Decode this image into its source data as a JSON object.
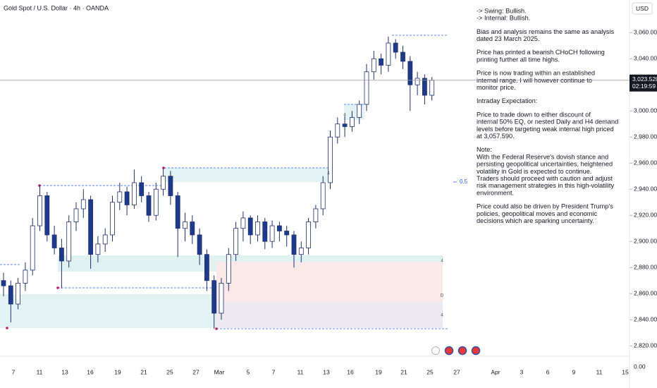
{
  "header": {
    "title": "Gold Spot / U.S. Dollar · 4h · OANDA",
    "currency": "USD"
  },
  "chart_data": {
    "type": "candlestick",
    "series": [
      {
        "up_color": "#ffffff",
        "down_color": "#1e3a8a",
        "edge_color": "#1e2f6e",
        "open": [
          2870,
          2866,
          2852,
          2868,
          2878,
          2912,
          2935,
          2905,
          2895,
          2885,
          2915,
          2925,
          2932,
          2890,
          2898,
          2905,
          2930,
          2938,
          2928,
          2945,
          2935,
          2920,
          2940,
          2950,
          2935,
          2910,
          2915,
          2905,
          2890,
          2870,
          2845,
          2868,
          2890,
          2910,
          2918,
          2905,
          2915,
          2900,
          2912,
          2908,
          2905,
          2890,
          2895,
          2915,
          2925,
          2945,
          2980,
          2990,
          2988,
          2995,
          3005,
          3030,
          3040,
          3035,
          3052,
          3045,
          3038,
          3020,
          3025,
          3012
        ],
        "high": [
          2876,
          2870,
          2872,
          2884,
          2918,
          2943,
          2938,
          2912,
          2902,
          2920,
          2930,
          2940,
          2935,
          2904,
          2910,
          2935,
          2945,
          2942,
          2955,
          2950,
          2938,
          2945,
          2956,
          2954,
          2938,
          2922,
          2920,
          2910,
          2894,
          2874,
          2872,
          2895,
          2915,
          2923,
          2920,
          2920,
          2918,
          2916,
          2915,
          2912,
          2908,
          2900,
          2918,
          2928,
          2950,
          2985,
          2995,
          2996,
          3000,
          3008,
          3036,
          3046,
          3044,
          3057,
          3055,
          3050,
          3042,
          3030,
          3028,
          3026
        ],
        "low": [
          2858,
          2838,
          2848,
          2862,
          2874,
          2908,
          2900,
          2890,
          2864,
          2880,
          2908,
          2918,
          2879,
          2884,
          2892,
          2900,
          2924,
          2920,
          2925,
          2930,
          2915,
          2916,
          2935,
          2928,
          2888,
          2900,
          2898,
          2882,
          2862,
          2833,
          2840,
          2862,
          2885,
          2900,
          2898,
          2900,
          2894,
          2895,
          2900,
          2896,
          2880,
          2884,
          2890,
          2910,
          2920,
          2940,
          2975,
          2980,
          2984,
          2990,
          3000,
          3024,
          3028,
          3030,
          3040,
          3032,
          3000,
          3012,
          3005,
          3008
        ],
        "close": [
          2866,
          2852,
          2868,
          2878,
          2912,
          2935,
          2905,
          2895,
          2885,
          2915,
          2925,
          2932,
          2890,
          2898,
          2905,
          2930,
          2938,
          2928,
          2945,
          2935,
          2920,
          2940,
          2950,
          2935,
          2910,
          2915,
          2905,
          2890,
          2870,
          2845,
          2868,
          2890,
          2910,
          2918,
          2905,
          2915,
          2900,
          2912,
          2908,
          2905,
          2890,
          2895,
          2915,
          2925,
          2945,
          2980,
          2990,
          2988,
          2995,
          3005,
          3030,
          3040,
          3035,
          3052,
          3045,
          3038,
          3020,
          3025,
          3012,
          3023.52
        ]
      }
    ],
    "ylim": [
      2812,
      3085
    ],
    "yticks": [
      {
        "value": 3060,
        "label": "3,060.00"
      },
      {
        "value": 3040,
        "label": "3,040.00"
      },
      {
        "value": 3000,
        "label": "3,000.00"
      },
      {
        "value": 2980,
        "label": "2,980.00"
      },
      {
        "value": 2960,
        "label": "2,960.00"
      },
      {
        "value": 2940,
        "label": "2,940.00"
      },
      {
        "value": 2920,
        "label": "2,920.00"
      },
      {
        "value": 2900,
        "label": "2,900.00"
      },
      {
        "value": 2880,
        "label": "2,880.00"
      },
      {
        "value": 2860,
        "label": "2,860.00"
      },
      {
        "value": 2840,
        "label": "2,840.00"
      },
      {
        "value": 2820,
        "label": "2,820.00"
      }
    ],
    "volume_axis_label": "0.00",
    "current_price": {
      "value": 3023.52,
      "label": "3,023.520",
      "countdown": "02:19:59"
    },
    "x_labels": [
      "7",
      "11",
      "13",
      "16",
      "19",
      "21",
      "25",
      "27",
      "Mar",
      "5",
      "7",
      "11",
      "13",
      "16",
      "19",
      "21",
      "25",
      "27",
      "Apr",
      "3",
      "6",
      "9",
      "11",
      "15"
    ],
    "zone_labels": [
      "4",
      "4",
      "4",
      "D",
      "4"
    ],
    "fib_label": "0.5"
  },
  "notes": [
    [
      "-> Swing:  Bullish.",
      "-> Internal:  Bullish."
    ],
    [
      "Bias and analysis remains the same as analysis",
      "dated 23 March 2025."
    ],
    [
      "Price has printed a bearish CHoCH following",
      "printing further all time highs."
    ],
    [
      "Price is now trading within an established",
      "internal range.  I will however continue to",
      "monitor price."
    ],
    [
      "Intraday Expectation:"
    ],
    [
      "Price to trade down to either discount of",
      "internal 50% EQ, or nested Daily and H4 demand",
      "levels before targeting weak internal high priced",
      "at 3,057.590."
    ],
    [
      "Note:",
      "With the Federal Reserve's dovish stance and",
      "persisting geopolitical uncertainties, heightened",
      "volatility in Gold is expected to continue.",
      "Traders should proceed with caution and adjust",
      "risk management strategies in this high-volatility",
      "environment."
    ],
    [
      "Price could also be driven by President Trump's",
      "policies, geopolitical moves and economic",
      "decisions which are sparking uncertainty."
    ]
  ]
}
